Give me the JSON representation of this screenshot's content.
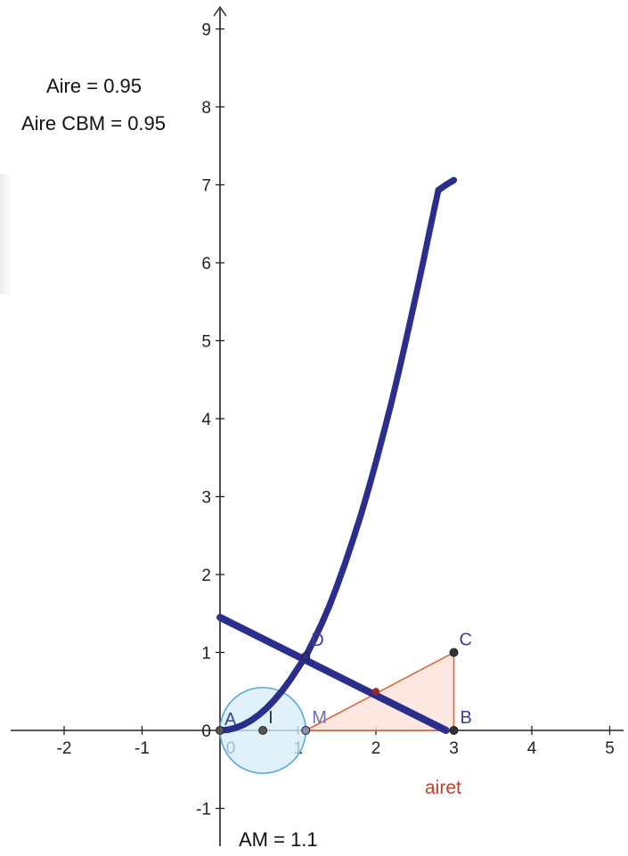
{
  "info": {
    "aire_label": "Aire = 0.95",
    "aire_cbm_label": "Aire CBM = 0.95",
    "am_label": "AM = 1.1"
  },
  "points": {
    "A": {
      "name": "A",
      "x": 0,
      "y": 0
    },
    "I": {
      "name": "I",
      "x": 0.55,
      "y": 0
    },
    "M": {
      "name": "M",
      "x": 1.1,
      "y": 0
    },
    "B": {
      "name": "B",
      "x": 3,
      "y": 0
    },
    "C": {
      "name": "C",
      "x": 3,
      "y": 1
    },
    "D": {
      "name": "D",
      "x": 1.1,
      "y": 0.95
    },
    "E": {
      "name": "",
      "x": 2,
      "y": 0.5
    }
  },
  "polygon_label": "airet",
  "circle": {
    "center_x": 0.55,
    "center_y": 0,
    "radius": 0.55
  },
  "segment_line": {
    "from": [
      0,
      1.45
    ],
    "to": [
      2.9,
      0
    ]
  },
  "colors": {
    "locus": "#2b2e8c",
    "circle_stroke": "#5aa9dc",
    "circle_fill": "#d6ecf8",
    "triangle_stroke": "#d9663a",
    "triangle_fill": "#fbe4dc",
    "label_blue": "#3a3d9a",
    "label_red": "#c0402a",
    "axis": "#222222"
  },
  "chart_data": {
    "type": "scatter",
    "title": "",
    "xlabel": "",
    "ylabel": "",
    "xlim": [
      -2.8,
      5.1
    ],
    "ylim": [
      -1.45,
      9.2
    ],
    "x_ticks": [
      -2,
      -1,
      0,
      1,
      2,
      3,
      4,
      5
    ],
    "y_ticks": [
      -1,
      0,
      1,
      2,
      3,
      4,
      5,
      6,
      7,
      8,
      9
    ],
    "grid": false,
    "series": [
      {
        "values_x": [
          0.0,
          0.1,
          0.2,
          0.3,
          0.4,
          0.5,
          0.6,
          0.7,
          0.8,
          0.9,
          1.0,
          1.1,
          1.2,
          1.3,
          1.4,
          1.5,
          1.6,
          1.7,
          1.8,
          1.9,
          2.0,
          2.1,
          2.2,
          2.3,
          2.4,
          2.5,
          2.6,
          2.7,
          2.8,
          2.9,
          3.0
        ],
        "values_y": [
          0.0,
          0.008,
          0.032,
          0.072,
          0.128,
          0.2,
          0.288,
          0.392,
          0.512,
          0.648,
          0.8,
          0.95,
          1.15,
          1.36,
          1.59,
          1.85,
          2.13,
          2.43,
          2.74,
          3.08,
          3.44,
          3.82,
          4.21,
          4.63,
          5.07,
          5.52,
          5.98,
          6.46,
          6.93,
          7.0,
          7.06
        ]
      }
    ]
  }
}
